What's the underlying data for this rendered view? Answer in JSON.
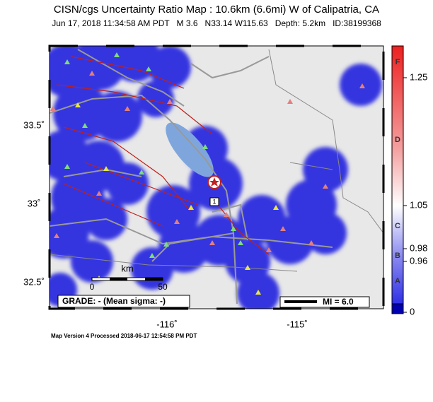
{
  "header": {
    "title": "CISN/cgs Uncertainty Ratio Map : 10.6km (6.6mi) W of Calipatria, CA",
    "subtitle": "Jun 17, 2018 11:34:58 AM PDT   M 3.6   N33.14 W115.63   Depth: 5.2km   ID:38199368"
  },
  "map": {
    "lat_labels": [
      "33.5˚",
      "33˚",
      "32.5˚"
    ],
    "lon_labels": [
      "-116˚",
      "-115˚"
    ],
    "scale": {
      "unit": "km",
      "start": "0",
      "end": "50"
    },
    "grade": "GRADE: - (Mean sigma: -)",
    "mi_legend": "MI = 6.0",
    "station_marker": "1"
  },
  "colorbar": {
    "grades": [
      "F",
      "D",
      "C",
      "B",
      "A"
    ],
    "ticks": [
      1.25,
      1.05,
      0.98,
      0.96,
      0
    ]
  },
  "footer": "Map Version 4 Processed 2018-06-17 12:54:58 PM PDT"
}
